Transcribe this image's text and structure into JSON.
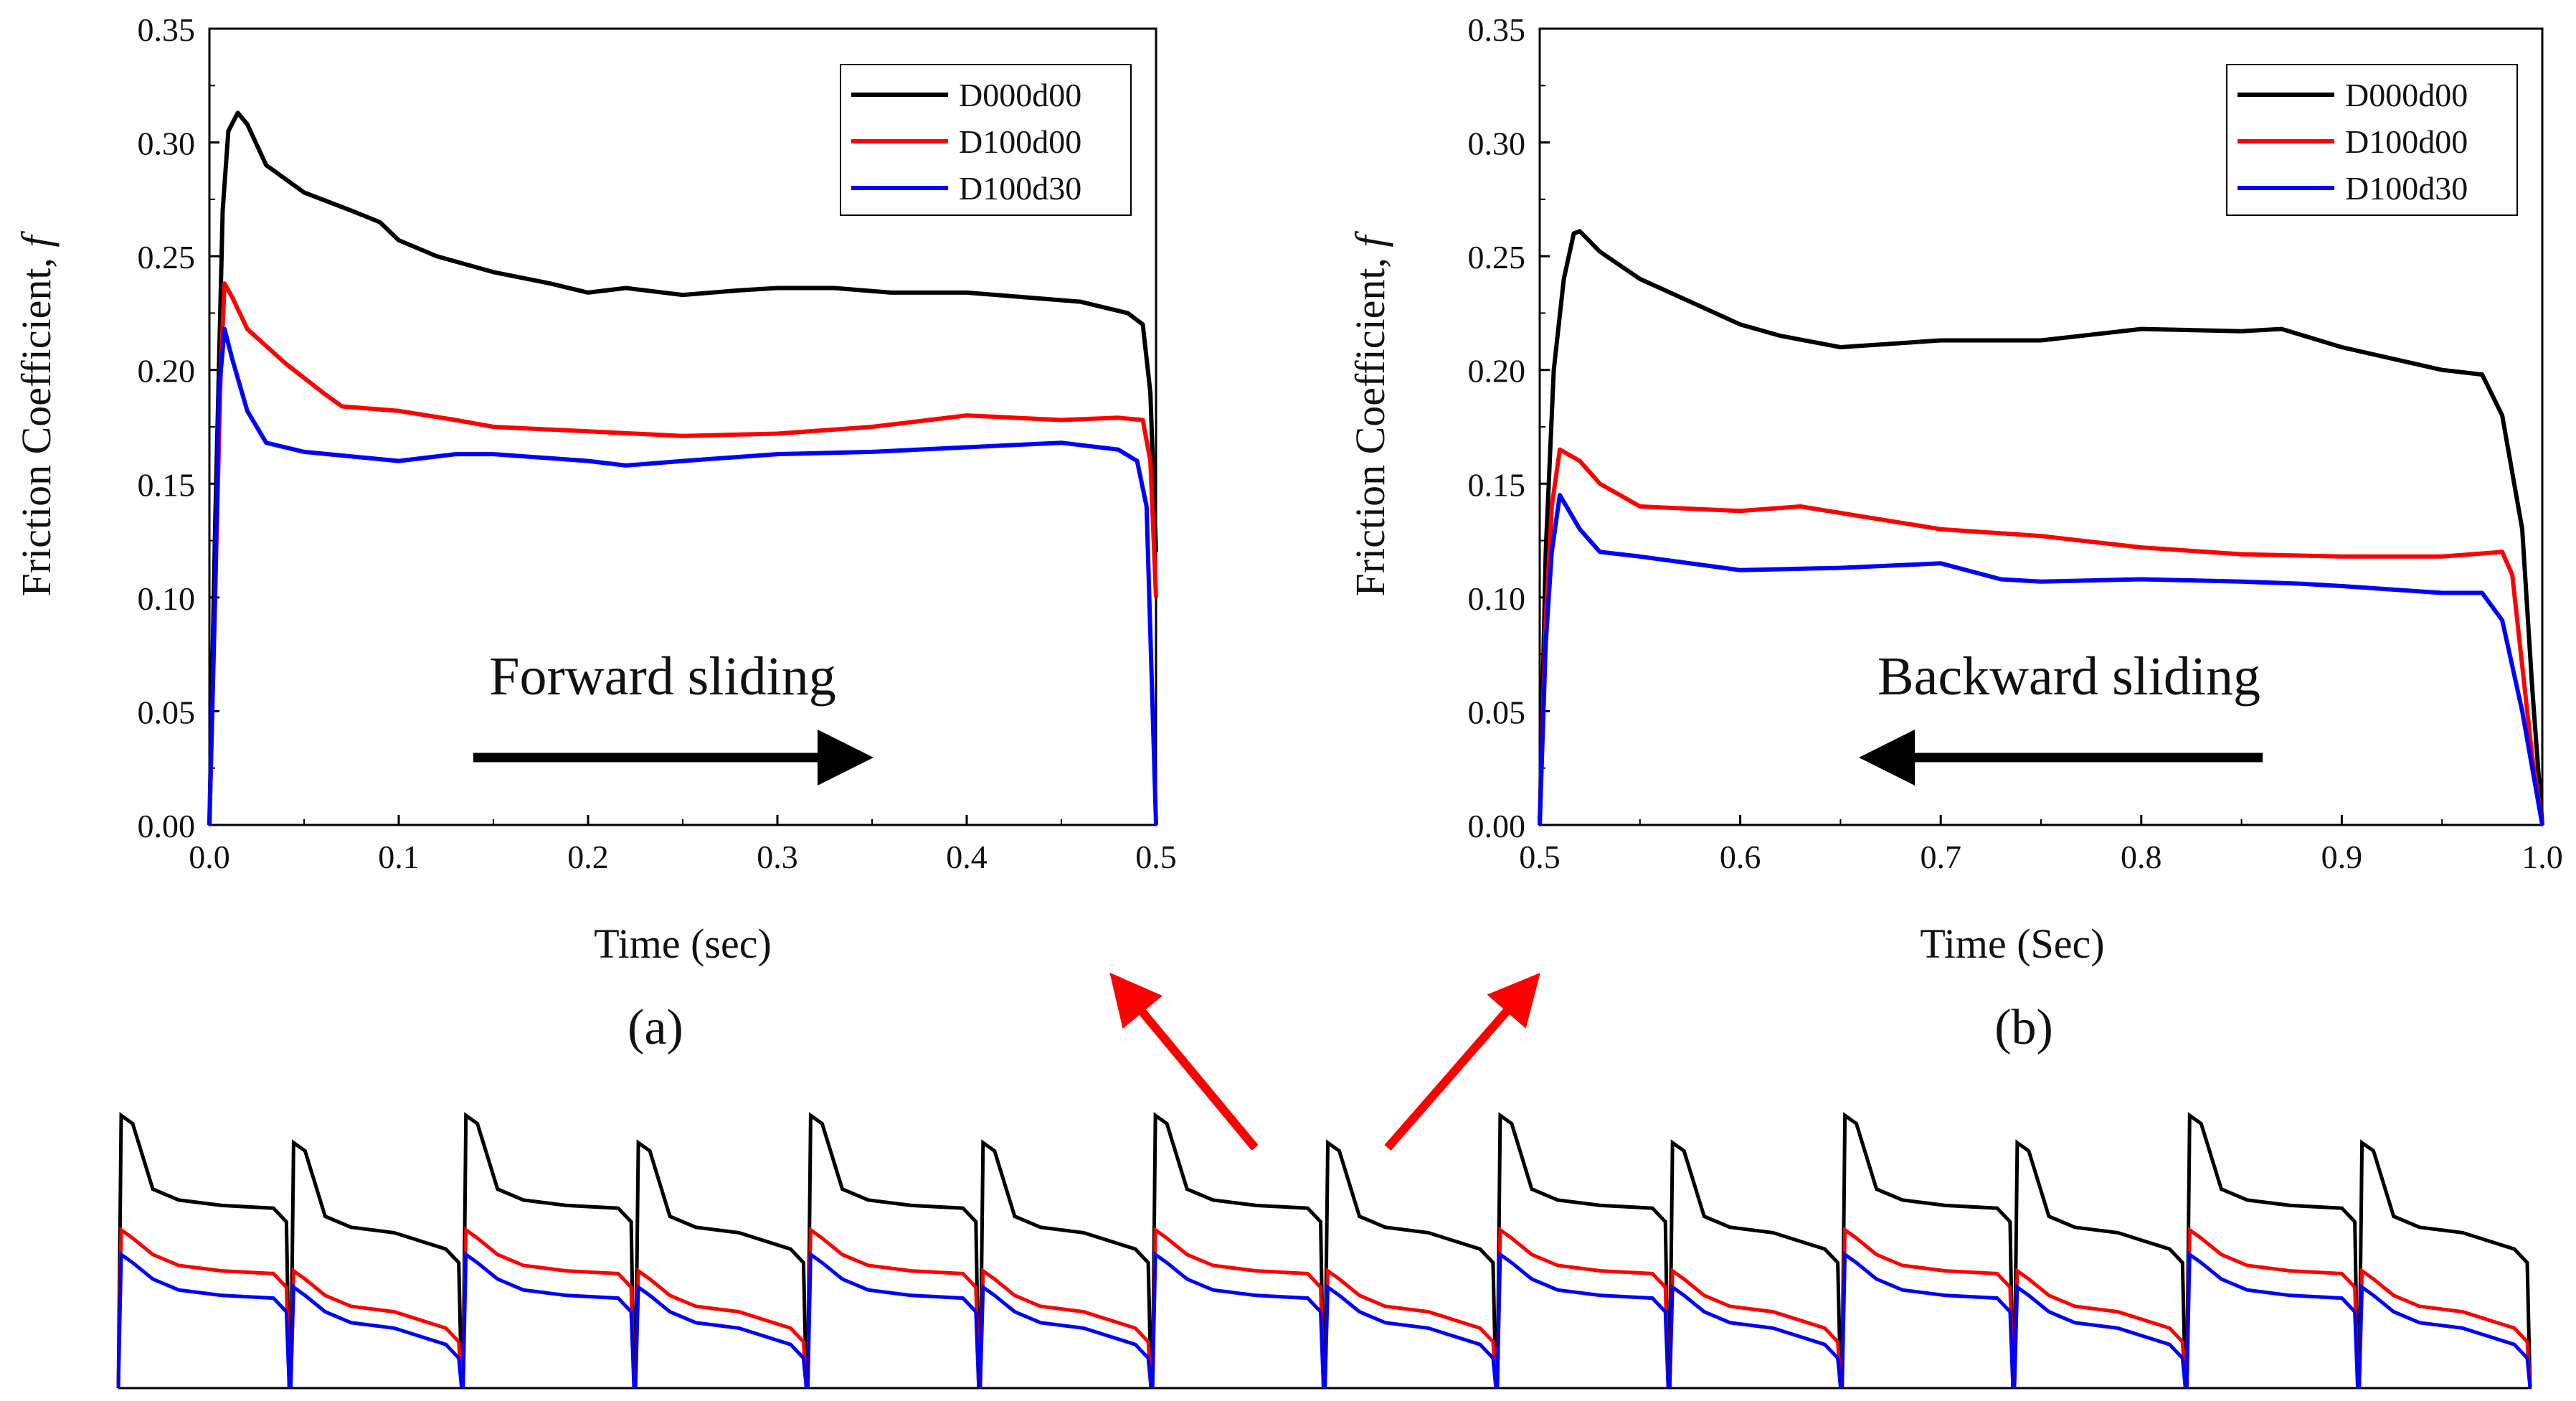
{
  "chart_data": [
    {
      "type": "line",
      "panel_label": "(a)",
      "xlabel": "Time (sec)",
      "ylabel": "Friction Coefficient, ",
      "ylabel_symbol": "f",
      "xlim": [
        0.0,
        0.5
      ],
      "ylim": [
        0.0,
        0.35
      ],
      "x_ticks": [
        "0.0",
        "0.1",
        "0.2",
        "0.3",
        "0.4",
        "0.5"
      ],
      "y_ticks": [
        "0.00",
        "0.05",
        "0.10",
        "0.15",
        "0.20",
        "0.25",
        "0.30",
        "0.35"
      ],
      "annotation": "Forward sliding",
      "arrow_direction": "right",
      "legend": [
        "D000d00",
        "D100d00",
        "D100d30"
      ],
      "series": [
        {
          "name": "D000d00",
          "color": "#000000",
          "x": [
            0,
            0.003,
            0.007,
            0.01,
            0.015,
            0.02,
            0.03,
            0.05,
            0.075,
            0.09,
            0.1,
            0.12,
            0.15,
            0.18,
            0.2,
            0.22,
            0.25,
            0.28,
            0.3,
            0.33,
            0.36,
            0.4,
            0.43,
            0.46,
            0.485,
            0.493,
            0.497,
            0.5
          ],
          "y": [
            0.0,
            0.13,
            0.27,
            0.305,
            0.313,
            0.308,
            0.29,
            0.278,
            0.27,
            0.265,
            0.257,
            0.25,
            0.243,
            0.238,
            0.234,
            0.236,
            0.233,
            0.235,
            0.236,
            0.236,
            0.234,
            0.234,
            0.232,
            0.23,
            0.225,
            0.22,
            0.19,
            0.12
          ]
        },
        {
          "name": "D100d00",
          "color": "#ff0000",
          "x": [
            0,
            0.003,
            0.006,
            0.008,
            0.012,
            0.02,
            0.04,
            0.06,
            0.07,
            0.1,
            0.13,
            0.15,
            0.2,
            0.25,
            0.3,
            0.35,
            0.37,
            0.4,
            0.45,
            0.48,
            0.493,
            0.497,
            0.5
          ],
          "y": [
            0.0,
            0.1,
            0.2,
            0.238,
            0.232,
            0.218,
            0.203,
            0.19,
            0.184,
            0.182,
            0.178,
            0.175,
            0.173,
            0.171,
            0.172,
            0.175,
            0.177,
            0.18,
            0.178,
            0.179,
            0.178,
            0.16,
            0.1
          ]
        },
        {
          "name": "D100d30",
          "color": "#0000ff",
          "x": [
            0,
            0.003,
            0.005,
            0.008,
            0.012,
            0.02,
            0.03,
            0.05,
            0.1,
            0.13,
            0.15,
            0.2,
            0.22,
            0.25,
            0.3,
            0.35,
            0.4,
            0.45,
            0.48,
            0.49,
            0.495,
            0.5
          ],
          "y": [
            0.0,
            0.1,
            0.19,
            0.218,
            0.205,
            0.182,
            0.168,
            0.164,
            0.16,
            0.163,
            0.163,
            0.16,
            0.158,
            0.16,
            0.163,
            0.164,
            0.166,
            0.168,
            0.165,
            0.16,
            0.14,
            0.0
          ]
        }
      ]
    },
    {
      "type": "line",
      "panel_label": "(b)",
      "xlabel": "Time (Sec)",
      "ylabel": "Friction Coefficient, ",
      "ylabel_symbol": "f",
      "xlim": [
        0.5,
        1.0
      ],
      "ylim": [
        0.0,
        0.35
      ],
      "x_ticks": [
        "0.5",
        "0.6",
        "0.7",
        "0.8",
        "0.9",
        "1.0"
      ],
      "y_ticks": [
        "0.00",
        "0.05",
        "0.10",
        "0.15",
        "0.20",
        "0.25",
        "0.30",
        "0.35"
      ],
      "annotation": "Backward sliding",
      "arrow_direction": "left",
      "legend": [
        "D000d00",
        "D100d00",
        "D100d30"
      ],
      "series": [
        {
          "name": "D000d00",
          "color": "#000000",
          "x": [
            0.5,
            0.503,
            0.507,
            0.512,
            0.517,
            0.52,
            0.53,
            0.55,
            0.58,
            0.6,
            0.62,
            0.65,
            0.7,
            0.75,
            0.8,
            0.85,
            0.87,
            0.9,
            0.95,
            0.97,
            0.98,
            0.99,
            0.995,
            1.0
          ],
          "y": [
            0.0,
            0.12,
            0.2,
            0.24,
            0.26,
            0.261,
            0.252,
            0.24,
            0.228,
            0.22,
            0.215,
            0.21,
            0.213,
            0.213,
            0.218,
            0.217,
            0.218,
            0.21,
            0.2,
            0.198,
            0.18,
            0.13,
            0.06,
            0.0
          ]
        },
        {
          "name": "D100d00",
          "color": "#ff0000",
          "x": [
            0.5,
            0.503,
            0.506,
            0.51,
            0.52,
            0.53,
            0.55,
            0.6,
            0.63,
            0.7,
            0.75,
            0.8,
            0.85,
            0.9,
            0.95,
            0.98,
            0.985,
            0.99,
            0.995,
            1.0
          ],
          "y": [
            0.0,
            0.09,
            0.14,
            0.165,
            0.16,
            0.15,
            0.14,
            0.138,
            0.14,
            0.13,
            0.127,
            0.122,
            0.119,
            0.118,
            0.118,
            0.12,
            0.11,
            0.07,
            0.03,
            0.0
          ]
        },
        {
          "name": "D100d30",
          "color": "#0000ff",
          "x": [
            0.5,
            0.503,
            0.506,
            0.51,
            0.52,
            0.53,
            0.55,
            0.6,
            0.65,
            0.7,
            0.73,
            0.75,
            0.8,
            0.85,
            0.88,
            0.9,
            0.95,
            0.97,
            0.98,
            0.99,
            1.0
          ],
          "y": [
            0.0,
            0.08,
            0.12,
            0.145,
            0.13,
            0.12,
            0.118,
            0.112,
            0.113,
            0.115,
            0.108,
            0.107,
            0.108,
            0.107,
            0.106,
            0.105,
            0.102,
            0.102,
            0.09,
            0.05,
            0.0
          ]
        }
      ]
    },
    {
      "type": "line",
      "role": "overview",
      "description_cycles": 14,
      "forward_pattern": {
        "D000d00": 0.67,
        "D100d00": 0.43,
        "D100d30": 0.34
      },
      "backward_pattern": {
        "D000d00": 0.57,
        "D100d00": 0.28,
        "D100d30": 0.22
      }
    }
  ]
}
